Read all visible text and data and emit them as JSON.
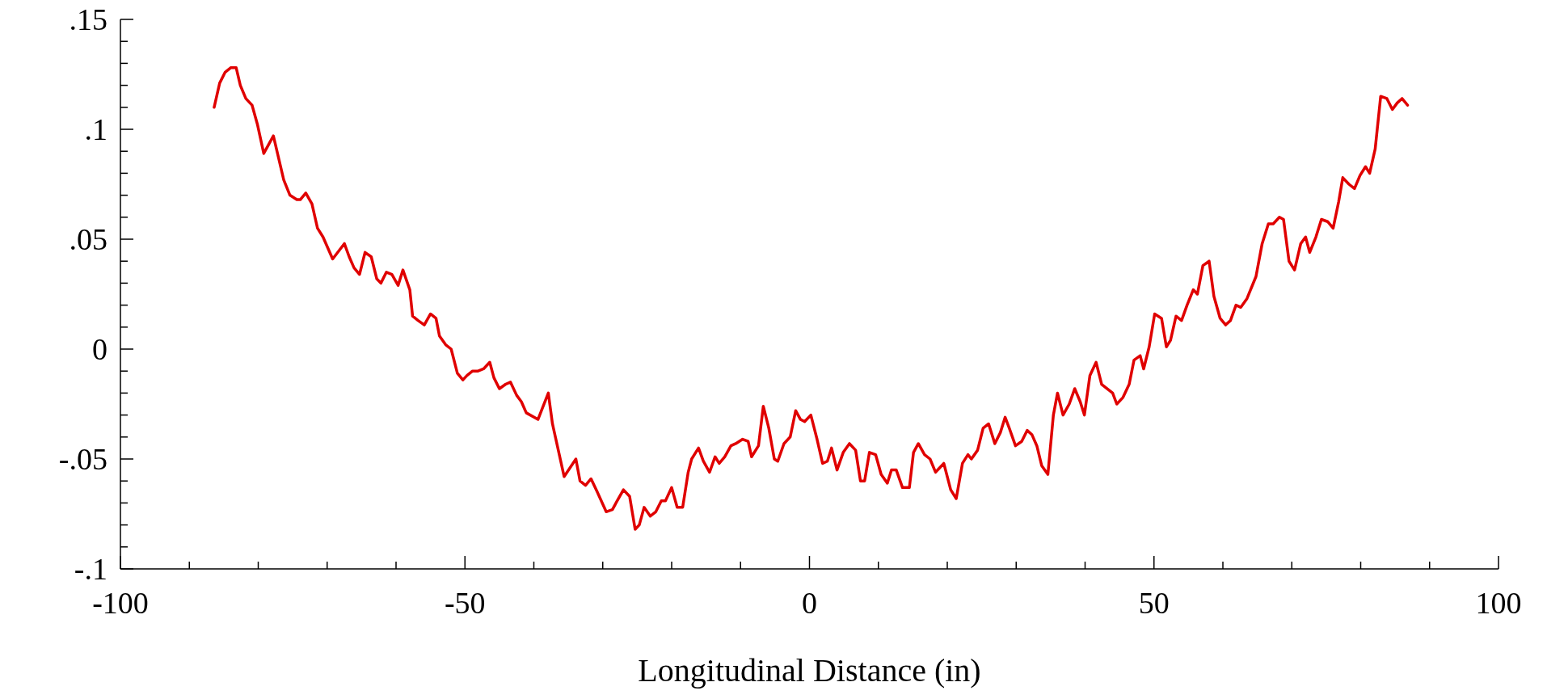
{
  "chart_data": {
    "type": "line",
    "xlabel": "Longitudinal Distance (in)",
    "xlim": [
      -100,
      100
    ],
    "ylim": [
      -0.1,
      0.15
    ],
    "xticks": [
      -100,
      {
        "value": -90,
        "label": null
      },
      {
        "value": -80,
        "label": null
      },
      {
        "value": -70,
        "label": null
      },
      {
        "value": -60,
        "label": null
      },
      -50,
      {
        "value": -40,
        "label": null
      },
      {
        "value": -30,
        "label": null
      },
      {
        "value": -20,
        "label": null
      },
      {
        "value": -10,
        "label": null
      },
      0,
      {
        "value": 10,
        "label": null
      },
      {
        "value": 20,
        "label": null
      },
      {
        "value": 30,
        "label": null
      },
      {
        "value": 40,
        "label": null
      },
      50,
      {
        "value": 60,
        "label": null
      },
      {
        "value": 70,
        "label": null
      },
      {
        "value": 80,
        "label": null
      },
      {
        "value": 90,
        "label": null
      },
      100
    ],
    "yticks": [
      {
        "value": -0.1,
        "label": "-.1"
      },
      {
        "value": -0.09,
        "label": null
      },
      {
        "value": -0.08,
        "label": null
      },
      {
        "value": -0.07,
        "label": null
      },
      {
        "value": -0.06,
        "label": null
      },
      {
        "value": -0.05,
        "label": "-.05"
      },
      {
        "value": -0.04,
        "label": null
      },
      {
        "value": -0.03,
        "label": null
      },
      {
        "value": -0.02,
        "label": null
      },
      {
        "value": -0.01,
        "label": null
      },
      0,
      {
        "value": 0.01,
        "label": null
      },
      {
        "value": 0.02,
        "label": null
      },
      {
        "value": 0.03,
        "label": null
      },
      {
        "value": 0.04,
        "label": null
      },
      {
        "value": 0.05,
        "label": ".05"
      },
      {
        "value": 0.06,
        "label": null
      },
      {
        "value": 0.07,
        "label": null
      },
      {
        "value": 0.08,
        "label": null
      },
      {
        "value": 0.09,
        "label": null
      },
      {
        "value": 0.1,
        "label": ".1"
      },
      {
        "value": 0.11,
        "label": null
      },
      {
        "value": 0.12,
        "label": null
      },
      {
        "value": 0.13,
        "label": null
      },
      {
        "value": 0.14,
        "label": null
      },
      {
        "value": 0.15,
        "label": ".15"
      }
    ],
    "grid": false,
    "marker": "none",
    "line_style": "solid",
    "series": [
      {
        "color": "#e00000",
        "x": [
          -86.4,
          -85.6,
          -84.8,
          -84.0,
          -83.2,
          -82.6,
          -81.8,
          -80.9,
          -80.1,
          -79.2,
          -77.8,
          -76.3,
          -75.4,
          -74.4,
          -73.9,
          -73.1,
          -72.2,
          -71.4,
          -70.6,
          -69.2,
          -67.5,
          -66.8,
          -66.1,
          -65.3,
          -64.5,
          -63.6,
          -62.8,
          -62.2,
          -61.4,
          -60.6,
          -59.7,
          -59.0,
          -58.0,
          -57.6,
          -56.8,
          -55.9,
          -55.0,
          -54.2,
          -53.7,
          -52.8,
          -52.0,
          -51.1,
          -50.3,
          -49.7,
          -48.9,
          -48.1,
          -47.3,
          -46.4,
          -45.8,
          -45.0,
          -44.1,
          -43.4,
          -42.5,
          -41.8,
          -41.1,
          -39.4,
          -37.9,
          -37.3,
          -35.6,
          -33.9,
          -33.3,
          -32.5,
          -31.7,
          -30.8,
          -29.5,
          -28.6,
          -27.9,
          -27.0,
          -26.1,
          -25.3,
          -24.7,
          -24.0,
          -23.1,
          -22.3,
          -21.5,
          -20.9,
          -20.0,
          -19.2,
          -18.4,
          -17.6,
          -17.1,
          -16.1,
          -15.4,
          -14.5,
          -13.7,
          -13.1,
          -12.3,
          -11.4,
          -10.7,
          -9.7,
          -8.9,
          -8.4,
          -7.4,
          -6.7,
          -5.9,
          -5.1,
          -4.6,
          -3.7,
          -2.8,
          -2.0,
          -1.3,
          -0.7,
          0.2,
          1.1,
          1.9,
          2.6,
          3.2,
          4.0,
          4.9,
          5.8,
          6.7,
          7.4,
          8.0,
          8.7,
          9.6,
          10.4,
          11.3,
          11.9,
          12.6,
          13.5,
          14.5,
          15.1,
          15.8,
          16.7,
          17.5,
          18.3,
          19.5,
          20.5,
          21.3,
          22.2,
          23.0,
          23.5,
          24.4,
          25.2,
          26.0,
          26.9,
          27.7,
          28.4,
          29.0,
          29.9,
          30.8,
          31.6,
          32.3,
          33.0,
          33.7,
          34.6,
          35.4,
          36.0,
          36.8,
          37.7,
          38.5,
          39.3,
          39.9,
          40.7,
          41.6,
          42.4,
          44.0,
          44.6,
          45.5,
          46.4,
          47.1,
          48.0,
          48.5,
          49.3,
          50.1,
          51.1,
          51.8,
          52.4,
          53.2,
          54.0,
          54.8,
          55.7,
          56.3,
          57.1,
          58.0,
          58.7,
          59.6,
          60.4,
          61.1,
          61.9,
          62.6,
          63.5,
          64.8,
          65.7,
          66.6,
          67.3,
          68.2,
          68.8,
          69.6,
          70.4,
          71.3,
          72.0,
          72.6,
          73.5,
          74.3,
          75.2,
          76.0,
          76.8,
          77.4,
          78.3,
          79.1,
          79.9,
          80.7,
          81.3,
          82.1,
          82.9,
          83.8,
          84.6,
          85.3,
          86.0,
          86.8
        ],
        "values": [
          0.11,
          0.121,
          0.126,
          0.128,
          0.128,
          0.12,
          0.114,
          0.111,
          0.102,
          0.089,
          0.097,
          0.077,
          0.07,
          0.068,
          0.068,
          0.071,
          0.066,
          0.055,
          0.051,
          0.041,
          0.048,
          0.042,
          0.037,
          0.034,
          0.044,
          0.042,
          0.032,
          0.03,
          0.035,
          0.034,
          0.029,
          0.036,
          0.027,
          0.015,
          0.013,
          0.011,
          0.016,
          0.014,
          0.006,
          0.002,
          0.0,
          -0.011,
          -0.014,
          -0.012,
          -0.01,
          -0.01,
          -0.009,
          -0.006,
          -0.013,
          -0.018,
          -0.016,
          -0.015,
          -0.021,
          -0.024,
          -0.029,
          -0.032,
          -0.02,
          -0.034,
          -0.058,
          -0.05,
          -0.06,
          -0.062,
          -0.059,
          -0.065,
          -0.074,
          -0.073,
          -0.069,
          -0.064,
          -0.067,
          -0.082,
          -0.08,
          -0.072,
          -0.076,
          -0.074,
          -0.069,
          -0.069,
          -0.063,
          -0.072,
          -0.072,
          -0.056,
          -0.05,
          -0.045,
          -0.051,
          -0.056,
          -0.049,
          -0.052,
          -0.049,
          -0.044,
          -0.043,
          -0.041,
          -0.042,
          -0.049,
          -0.044,
          -0.026,
          -0.036,
          -0.05,
          -0.051,
          -0.043,
          -0.04,
          -0.028,
          -0.032,
          -0.033,
          -0.03,
          -0.041,
          -0.052,
          -0.051,
          -0.045,
          -0.055,
          -0.047,
          -0.043,
          -0.046,
          -0.06,
          -0.06,
          -0.047,
          -0.048,
          -0.057,
          -0.061,
          -0.055,
          -0.055,
          -0.063,
          -0.063,
          -0.047,
          -0.043,
          -0.048,
          -0.05,
          -0.056,
          -0.052,
          -0.064,
          -0.068,
          -0.052,
          -0.048,
          -0.05,
          -0.046,
          -0.036,
          -0.034,
          -0.043,
          -0.038,
          -0.031,
          -0.036,
          -0.044,
          -0.042,
          -0.037,
          -0.039,
          -0.044,
          -0.053,
          -0.057,
          -0.03,
          -0.02,
          -0.03,
          -0.025,
          -0.018,
          -0.024,
          -0.03,
          -0.012,
          -0.006,
          -0.016,
          -0.02,
          -0.025,
          -0.022,
          -0.016,
          -0.005,
          -0.003,
          -0.009,
          0.001,
          0.016,
          0.014,
          0.001,
          0.004,
          0.015,
          0.013,
          0.02,
          0.027,
          0.025,
          0.038,
          0.04,
          0.024,
          0.014,
          0.011,
          0.013,
          0.02,
          0.019,
          0.023,
          0.033,
          0.048,
          0.057,
          0.057,
          0.06,
          0.059,
          0.04,
          0.036,
          0.048,
          0.051,
          0.044,
          0.051,
          0.059,
          0.058,
          0.055,
          0.067,
          0.078,
          0.075,
          0.073,
          0.079,
          0.083,
          0.08,
          0.091,
          0.115,
          0.114,
          0.109,
          0.112,
          0.114,
          0.111
        ]
      }
    ]
  }
}
